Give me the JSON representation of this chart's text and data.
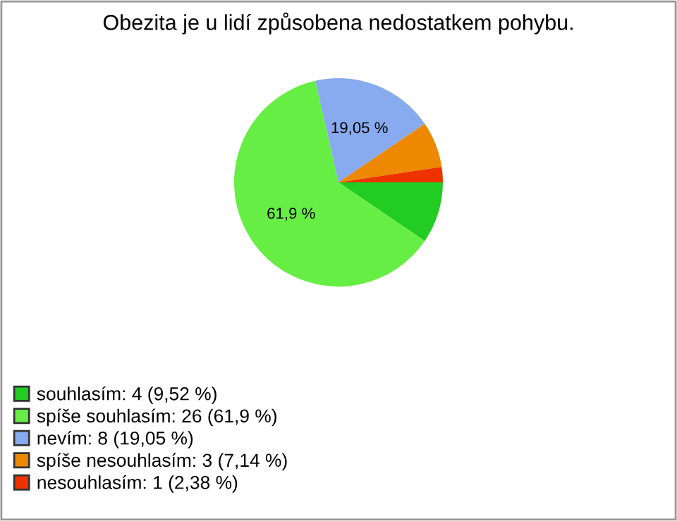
{
  "chart_data": {
    "type": "pie",
    "title": "Obezita je u lidí způsobena nedostatkem pohybu.",
    "categories": [
      "souhlasím: 4 (9,52 %)",
      "spíše souhlasím: 26 (61,9 %)",
      "nevím: 8 (19,05 %)",
      "spíše nesouhlasím: 3 (7,14 %)",
      "nesouhlasím: 1 (2,38 %)"
    ],
    "values": [
      9.52,
      61.9,
      19.05,
      7.14,
      2.38
    ],
    "colors": [
      "#22cc22",
      "#66ee44",
      "#88aaee",
      "#ee8800",
      "#ee3300"
    ],
    "value_labels": [
      null,
      "61,9 %",
      "19,05 %",
      null,
      null
    ],
    "legend": "bottom left"
  }
}
